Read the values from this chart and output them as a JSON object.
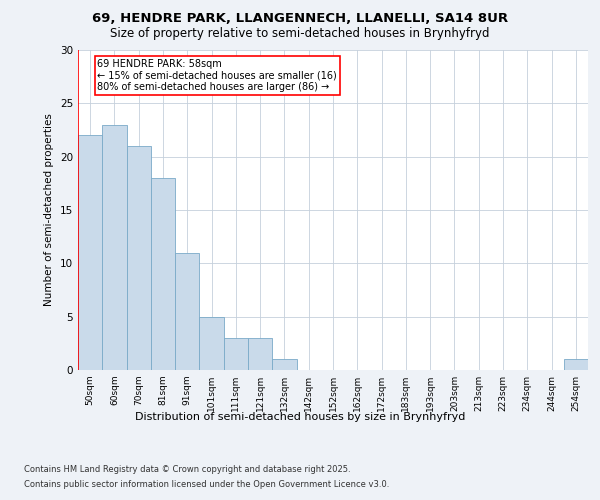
{
  "title1": "69, HENDRE PARK, LLANGENNECH, LLANELLI, SA14 8UR",
  "title2": "Size of property relative to semi-detached houses in Brynhyfryd",
  "xlabel": "Distribution of semi-detached houses by size in Brynhyfryd",
  "ylabel": "Number of semi-detached properties",
  "categories": [
    "50sqm",
    "60sqm",
    "70sqm",
    "81sqm",
    "91sqm",
    "101sqm",
    "111sqm",
    "121sqm",
    "132sqm",
    "142sqm",
    "152sqm",
    "162sqm",
    "172sqm",
    "183sqm",
    "193sqm",
    "203sqm",
    "213sqm",
    "223sqm",
    "234sqm",
    "244sqm",
    "254sqm"
  ],
  "values": [
    22,
    23,
    21,
    18,
    11,
    5,
    3,
    3,
    1,
    0,
    0,
    0,
    0,
    0,
    0,
    0,
    0,
    0,
    0,
    0,
    1
  ],
  "bar_color": "#c9daea",
  "bar_edge_color": "#7aaac8",
  "red_line_x": 0.5,
  "annotation_title": "69 HENDRE PARK: 58sqm",
  "annotation_line2": "← 15% of semi-detached houses are smaller (16)",
  "annotation_line3": "80% of semi-detached houses are larger (86) →",
  "ylim": [
    0,
    30
  ],
  "yticks": [
    0,
    5,
    10,
    15,
    20,
    25,
    30
  ],
  "footnote1": "Contains HM Land Registry data © Crown copyright and database right 2025.",
  "footnote2": "Contains public sector information licensed under the Open Government Licence v3.0.",
  "bg_color": "#eef2f7",
  "plot_bg_color": "#ffffff"
}
